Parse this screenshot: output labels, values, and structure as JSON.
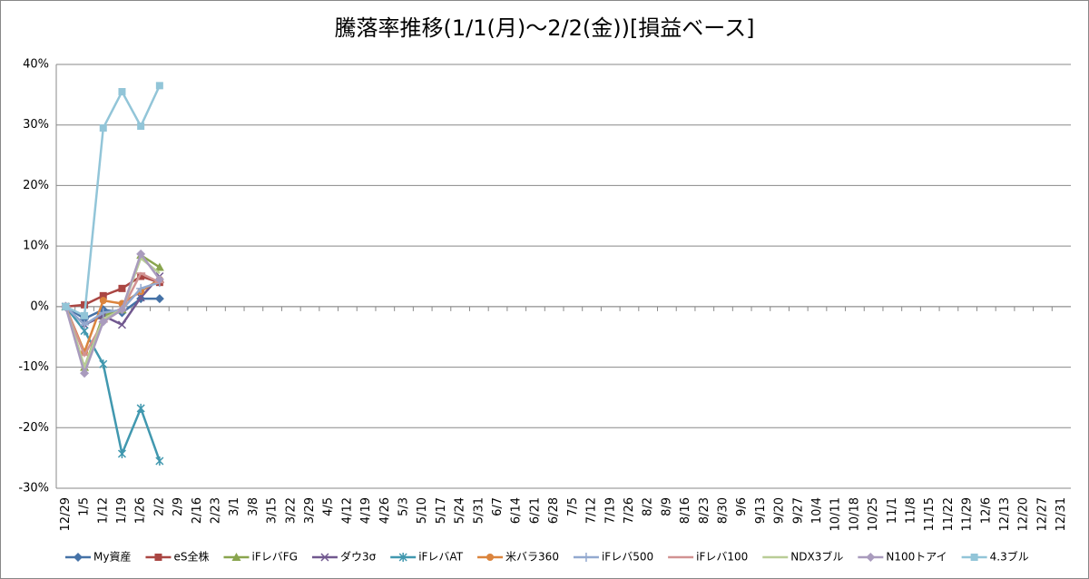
{
  "chart_data": {
    "type": "line",
    "title": "騰落率推移(1/1(月)～2/2(金))[損益ベース]",
    "categories": [
      "12/29",
      "1/5",
      "1/12",
      "1/19",
      "1/26",
      "2/2",
      "2/9",
      "2/16",
      "2/23",
      "3/1",
      "3/8",
      "3/15",
      "3/22",
      "3/29",
      "4/5",
      "4/12",
      "4/19",
      "4/26",
      "5/3",
      "5/10",
      "5/17",
      "5/24",
      "5/31",
      "6/7",
      "6/14",
      "6/21",
      "6/28",
      "7/5",
      "7/12",
      "7/19",
      "7/26",
      "8/2",
      "8/9",
      "8/16",
      "8/23",
      "8/30",
      "9/6",
      "9/13",
      "9/20",
      "9/27",
      "10/4",
      "10/11",
      "10/18",
      "10/25",
      "11/1",
      "11/8",
      "11/15",
      "11/22",
      "11/29",
      "12/6",
      "12/13",
      "12/20",
      "12/27",
      "12/31"
    ],
    "ylim": [
      -30,
      40
    ],
    "yticks": [
      {
        "value": -30,
        "label": "-30%"
      },
      {
        "value": -20,
        "label": "-20%"
      },
      {
        "value": -10,
        "label": "-10%"
      },
      {
        "value": 0,
        "label": "0%"
      },
      {
        "value": 10,
        "label": "10%"
      },
      {
        "value": 20,
        "label": "20%"
      },
      {
        "value": 30,
        "label": "30%"
      },
      {
        "value": 40,
        "label": "40%"
      }
    ],
    "grid": true,
    "legend": "bottom",
    "series": [
      {
        "name": "My資産",
        "color": "#4572a7",
        "marker": "diamond",
        "values": [
          0,
          -2,
          -0.5,
          -1,
          1.3,
          1.3,
          null,
          null,
          null,
          null,
          null,
          null,
          null,
          null,
          null,
          null,
          null,
          null,
          null,
          null,
          null,
          null,
          null,
          null,
          null,
          null,
          null,
          null,
          null,
          null,
          null,
          null,
          null,
          null,
          null,
          null,
          null,
          null,
          null,
          null,
          null,
          null,
          null,
          null,
          null,
          null,
          null,
          null,
          null,
          null,
          null,
          null,
          null,
          null
        ]
      },
      {
        "name": "eS全株",
        "color": "#aa4643",
        "marker": "square",
        "values": [
          0,
          0.3,
          1.8,
          3,
          5,
          4,
          null,
          null,
          null,
          null,
          null,
          null,
          null,
          null,
          null,
          null,
          null,
          null,
          null,
          null,
          null,
          null,
          null,
          null,
          null,
          null,
          null,
          null,
          null,
          null,
          null,
          null,
          null,
          null,
          null,
          null,
          null,
          null,
          null,
          null,
          null,
          null,
          null,
          null,
          null,
          null,
          null,
          null,
          null,
          null,
          null,
          null,
          null,
          null
        ]
      },
      {
        "name": "iFレバFG",
        "color": "#89a54e",
        "marker": "triangle",
        "values": [
          0,
          -10,
          -1.5,
          -0.5,
          8.5,
          6.5,
          null,
          null,
          null,
          null,
          null,
          null,
          null,
          null,
          null,
          null,
          null,
          null,
          null,
          null,
          null,
          null,
          null,
          null,
          null,
          null,
          null,
          null,
          null,
          null,
          null,
          null,
          null,
          null,
          null,
          null,
          null,
          null,
          null,
          null,
          null,
          null,
          null,
          null,
          null,
          null,
          null,
          null,
          null,
          null,
          null,
          null,
          null,
          null
        ]
      },
      {
        "name": "ダウ3σ",
        "color": "#71588f",
        "marker": "x",
        "values": [
          0,
          -3,
          -1.5,
          -3,
          1.5,
          5,
          null,
          null,
          null,
          null,
          null,
          null,
          null,
          null,
          null,
          null,
          null,
          null,
          null,
          null,
          null,
          null,
          null,
          null,
          null,
          null,
          null,
          null,
          null,
          null,
          null,
          null,
          null,
          null,
          null,
          null,
          null,
          null,
          null,
          null,
          null,
          null,
          null,
          null,
          null,
          null,
          null,
          null,
          null,
          null,
          null,
          null,
          null,
          null
        ]
      },
      {
        "name": "iFレバAT",
        "color": "#4198af",
        "marker": "star",
        "values": [
          0,
          -4,
          -9.5,
          -24.3,
          -16.8,
          -25.5,
          null,
          null,
          null,
          null,
          null,
          null,
          null,
          null,
          null,
          null,
          null,
          null,
          null,
          null,
          null,
          null,
          null,
          null,
          null,
          null,
          null,
          null,
          null,
          null,
          null,
          null,
          null,
          null,
          null,
          null,
          null,
          null,
          null,
          null,
          null,
          null,
          null,
          null,
          null,
          null,
          null,
          null,
          null,
          null,
          null,
          null,
          null,
          null
        ]
      },
      {
        "name": "米バラ360",
        "color": "#db843d",
        "marker": "circle",
        "values": [
          0,
          -7.5,
          1,
          0.5,
          2.5,
          4.5,
          null,
          null,
          null,
          null,
          null,
          null,
          null,
          null,
          null,
          null,
          null,
          null,
          null,
          null,
          null,
          null,
          null,
          null,
          null,
          null,
          null,
          null,
          null,
          null,
          null,
          null,
          null,
          null,
          null,
          null,
          null,
          null,
          null,
          null,
          null,
          null,
          null,
          null,
          null,
          null,
          null,
          null,
          null,
          null,
          null,
          null,
          null,
          null
        ]
      },
      {
        "name": "iFレバ500",
        "color": "#93a9cf",
        "marker": "plus",
        "values": [
          0,
          -3,
          -1,
          -0.5,
          3,
          4,
          null,
          null,
          null,
          null,
          null,
          null,
          null,
          null,
          null,
          null,
          null,
          null,
          null,
          null,
          null,
          null,
          null,
          null,
          null,
          null,
          null,
          null,
          null,
          null,
          null,
          null,
          null,
          null,
          null,
          null,
          null,
          null,
          null,
          null,
          null,
          null,
          null,
          null,
          null,
          null,
          null,
          null,
          null,
          null,
          null,
          null,
          null,
          null
        ]
      },
      {
        "name": "iFレバ100",
        "color": "#d19392",
        "marker": "dash",
        "values": [
          0,
          -8,
          -2.5,
          -0.5,
          5.5,
          4,
          null,
          null,
          null,
          null,
          null,
          null,
          null,
          null,
          null,
          null,
          null,
          null,
          null,
          null,
          null,
          null,
          null,
          null,
          null,
          null,
          null,
          null,
          null,
          null,
          null,
          null,
          null,
          null,
          null,
          null,
          null,
          null,
          null,
          null,
          null,
          null,
          null,
          null,
          null,
          null,
          null,
          null,
          null,
          null,
          null,
          null,
          null,
          null
        ]
      },
      {
        "name": "NDX3ブル",
        "color": "#b9cd96",
        "marker": "none",
        "values": [
          0,
          -10,
          -2,
          -0.5,
          8,
          5.5,
          null,
          null,
          null,
          null,
          null,
          null,
          null,
          null,
          null,
          null,
          null,
          null,
          null,
          null,
          null,
          null,
          null,
          null,
          null,
          null,
          null,
          null,
          null,
          null,
          null,
          null,
          null,
          null,
          null,
          null,
          null,
          null,
          null,
          null,
          null,
          null,
          null,
          null,
          null,
          null,
          null,
          null,
          null,
          null,
          null,
          null,
          null,
          null
        ]
      },
      {
        "name": "N100トアイ",
        "color": "#a99bbd",
        "marker": "diamond",
        "values": [
          0,
          -11,
          -2.5,
          -0.5,
          8.7,
          4.5,
          null,
          null,
          null,
          null,
          null,
          null,
          null,
          null,
          null,
          null,
          null,
          null,
          null,
          null,
          null,
          null,
          null,
          null,
          null,
          null,
          null,
          null,
          null,
          null,
          null,
          null,
          null,
          null,
          null,
          null,
          null,
          null,
          null,
          null,
          null,
          null,
          null,
          null,
          null,
          null,
          null,
          null,
          null,
          null,
          null,
          null,
          null,
          null
        ]
      },
      {
        "name": "4.3ブル",
        "color": "#92c5d8",
        "marker": "square",
        "values": [
          0,
          -1.5,
          29.5,
          35.5,
          29.8,
          36.5,
          null,
          null,
          null,
          null,
          null,
          null,
          null,
          null,
          null,
          null,
          null,
          null,
          null,
          null,
          null,
          null,
          null,
          null,
          null,
          null,
          null,
          null,
          null,
          null,
          null,
          null,
          null,
          null,
          null,
          null,
          null,
          null,
          null,
          null,
          null,
          null,
          null,
          null,
          null,
          null,
          null,
          null,
          null,
          null,
          null,
          null,
          null,
          null
        ]
      }
    ]
  }
}
